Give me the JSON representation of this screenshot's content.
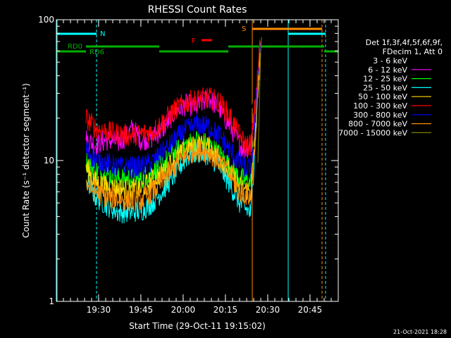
{
  "chart_data": {
    "type": "line",
    "title": "RHESSI Count Rates",
    "xlabel": "Start Time (29-Oct-11 19:15:02)",
    "ylabel": "Count Rate (s⁻¹ detector segment⁻¹)",
    "y_scale": "log",
    "ylim": [
      1,
      100
    ],
    "yticks": [
      {
        "label": "1",
        "value": 1
      },
      {
        "label": "10",
        "value": 10
      },
      {
        "label": "100",
        "value": 100
      }
    ],
    "xlim_minutes": [
      0,
      100
    ],
    "xticks": [
      {
        "label": "19:30",
        "minute": 14.97
      },
      {
        "label": "19:45",
        "minute": 29.97
      },
      {
        "label": "20:00",
        "minute": 44.97
      },
      {
        "label": "20:15",
        "minute": 59.97
      },
      {
        "label": "20:30",
        "minute": 74.97
      },
      {
        "label": "20:45",
        "minute": 89.97
      }
    ],
    "legend_header": [
      "Det 1f,3f,4f,5f,6f,9f,",
      "FDecim 1, Att 0"
    ],
    "legend_position": "right",
    "series": [
      {
        "name": "3 - 6 keV",
        "color": "#000000",
        "points": [
          [
            10.5,
            20
          ],
          [
            14,
            19
          ],
          [
            18,
            21
          ],
          [
            22,
            20
          ],
          [
            26,
            21
          ],
          [
            30,
            22
          ],
          [
            34,
            24
          ],
          [
            38,
            26
          ],
          [
            42,
            30
          ],
          [
            46,
            33
          ],
          [
            50,
            31
          ],
          [
            53,
            38
          ],
          [
            54.5,
            44
          ],
          [
            56,
            37
          ],
          [
            59,
            33
          ],
          [
            62,
            28
          ],
          [
            65,
            22
          ],
          [
            68,
            21
          ],
          [
            70,
            25
          ],
          [
            71,
            33
          ],
          [
            72,
            60
          ],
          [
            72.5,
            78
          ]
        ]
      },
      {
        "name": "6 - 12 keV",
        "color": "#ff00ff",
        "points": [
          [
            10.5,
            14
          ],
          [
            14,
            13
          ],
          [
            18,
            14
          ],
          [
            22,
            13.5
          ],
          [
            25,
            15
          ],
          [
            27,
            17
          ],
          [
            30,
            14
          ],
          [
            34,
            14.5
          ],
          [
            38,
            17
          ],
          [
            42,
            22
          ],
          [
            46,
            25
          ],
          [
            50,
            24
          ],
          [
            54,
            28
          ],
          [
            58,
            23
          ],
          [
            62,
            17
          ],
          [
            65,
            13
          ],
          [
            67,
            12
          ],
          [
            69,
            13
          ],
          [
            71,
            28
          ],
          [
            72.3,
            70
          ]
        ]
      },
      {
        "name": "12 - 25 keV",
        "color": "#00ff00",
        "points": [
          [
            10.5,
            10
          ],
          [
            14,
            8.5
          ],
          [
            18,
            8
          ],
          [
            22,
            7.5
          ],
          [
            26,
            7.5
          ],
          [
            30,
            7.4
          ],
          [
            34,
            8.5
          ],
          [
            38,
            9.5
          ],
          [
            42,
            11.5
          ],
          [
            46,
            13
          ],
          [
            50,
            14
          ],
          [
            54,
            13
          ],
          [
            58,
            11
          ],
          [
            62,
            9
          ],
          [
            65,
            7.5
          ],
          [
            69,
            7
          ],
          [
            71,
            25
          ],
          [
            72.3,
            68
          ]
        ]
      },
      {
        "name": "25 - 50 keV",
        "color": "#00ffff",
        "points": [
          [
            10.5,
            7.5
          ],
          [
            14,
            5.5
          ],
          [
            18,
            4.8
          ],
          [
            22,
            4.3
          ],
          [
            26,
            4.3
          ],
          [
            30,
            4.4
          ],
          [
            34,
            5
          ],
          [
            38,
            6.2
          ],
          [
            42,
            8
          ],
          [
            46,
            10.5
          ],
          [
            50,
            11.5
          ],
          [
            54,
            11
          ],
          [
            58,
            9
          ],
          [
            62,
            6.5
          ],
          [
            65,
            5
          ],
          [
            69,
            4.2
          ],
          [
            71,
            20
          ],
          [
            72.3,
            60
          ]
        ]
      },
      {
        "name": "50 - 100 keV",
        "color": "#ffd700",
        "points": [
          [
            10.5,
            9
          ],
          [
            14,
            7
          ],
          [
            18,
            6.5
          ],
          [
            22,
            6.3
          ],
          [
            26,
            6.2
          ],
          [
            30,
            6.3
          ],
          [
            34,
            7.2
          ],
          [
            38,
            8.4
          ],
          [
            42,
            10.2
          ],
          [
            46,
            12
          ],
          [
            50,
            13
          ],
          [
            54,
            12.5
          ],
          [
            58,
            10.5
          ],
          [
            62,
            8
          ],
          [
            65,
            6.5
          ],
          [
            69,
            6
          ],
          [
            71,
            22
          ],
          [
            72.3,
            62
          ]
        ]
      },
      {
        "name": "100 - 300 keV",
        "color": "#ff0000",
        "points": [
          [
            10.5,
            20
          ],
          [
            14,
            17
          ],
          [
            18,
            16
          ],
          [
            22,
            15.5
          ],
          [
            26,
            15
          ],
          [
            30,
            15.5
          ],
          [
            34,
            16
          ],
          [
            38,
            19
          ],
          [
            42,
            23
          ],
          [
            46,
            26
          ],
          [
            50,
            27
          ],
          [
            54,
            28
          ],
          [
            58,
            26
          ],
          [
            62,
            20
          ],
          [
            65,
            15
          ],
          [
            67,
            13
          ],
          [
            69,
            13
          ],
          [
            71,
            30
          ],
          [
            72.3,
            72
          ]
        ]
      },
      {
        "name": "300 - 800 keV",
        "color": "#0000ff",
        "points": [
          [
            10.5,
            12
          ],
          [
            14,
            10
          ],
          [
            18,
            9.5
          ],
          [
            22,
            9
          ],
          [
            26,
            9
          ],
          [
            30,
            9
          ],
          [
            34,
            9.8
          ],
          [
            38,
            11.5
          ],
          [
            42,
            14
          ],
          [
            46,
            16.5
          ],
          [
            50,
            18
          ],
          [
            54,
            17.5
          ],
          [
            58,
            15
          ],
          [
            62,
            11.5
          ],
          [
            65,
            9.5
          ],
          [
            69,
            8.5
          ],
          [
            71,
            24
          ],
          [
            72.3,
            65
          ]
        ]
      },
      {
        "name": "800 - 7000 keV",
        "color": "#ff8c00",
        "points": [
          [
            10.5,
            6.8
          ],
          [
            14,
            6
          ],
          [
            18,
            5.5
          ],
          [
            22,
            5.3
          ],
          [
            26,
            5.2
          ],
          [
            30,
            5.3
          ],
          [
            34,
            6
          ],
          [
            38,
            7.2
          ],
          [
            42,
            9
          ],
          [
            46,
            10.8
          ],
          [
            50,
            12
          ],
          [
            54,
            11.5
          ],
          [
            58,
            9.8
          ],
          [
            62,
            7.5
          ],
          [
            65,
            6
          ],
          [
            69,
            5.5
          ],
          [
            71,
            20
          ],
          [
            72.3,
            58
          ]
        ]
      },
      {
        "name": "7000 - 15000 keV",
        "color": "#808000",
        "points": [
          [
            71.5,
            10
          ],
          [
            72.3,
            40
          ],
          [
            72.8,
            75
          ]
        ]
      }
    ],
    "annotations": [
      {
        "text": "N",
        "color": "#00ffff"
      },
      {
        "text": "RD0",
        "color": "#00b000"
      },
      {
        "text": "RD6",
        "color": "#00b000"
      },
      {
        "text": "F",
        "color": "#ff0000"
      },
      {
        "text": "S",
        "color": "#ff8c00"
      }
    ],
    "footer_timestamp": "21-Oct-2021 18:28"
  }
}
